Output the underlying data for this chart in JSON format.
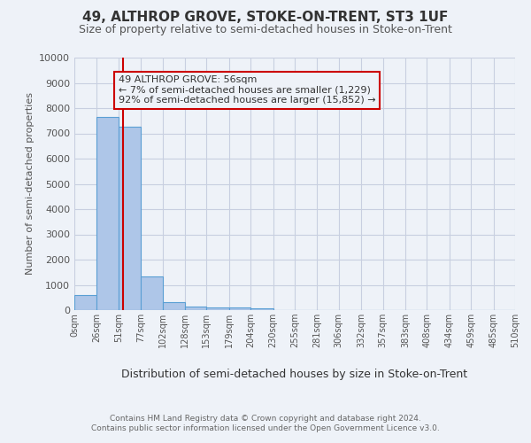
{
  "title": "49, ALTHROP GROVE, STOKE-ON-TRENT, ST3 1UF",
  "subtitle": "Size of property relative to semi-detached houses in Stoke-on-Trent",
  "xlabel": "Distribution of semi-detached houses by size in Stoke-on-Trent",
  "ylabel": "Number of semi-detached properties",
  "footer_line1": "Contains HM Land Registry data © Crown copyright and database right 2024.",
  "footer_line2": "Contains public sector information licensed under the Open Government Licence v3.0.",
  "annotation_title": "49 ALTHROP GROVE: 56sqm",
  "annotation_line1": "← 7% of semi-detached houses are smaller (1,229)",
  "annotation_line2": "92% of semi-detached houses are larger (15,852) →",
  "property_size_sqm": 56,
  "bar_edges": [
    0,
    26,
    51,
    77,
    102,
    128,
    153,
    179,
    204,
    230,
    255,
    281,
    306,
    332,
    357,
    383,
    408,
    434,
    459,
    485,
    510
  ],
  "bar_heights": [
    600,
    7650,
    7250,
    1350,
    330,
    150,
    120,
    100,
    80,
    0,
    0,
    0,
    0,
    0,
    0,
    0,
    0,
    0,
    0,
    0
  ],
  "bar_color": "#aec6e8",
  "bar_edgecolor": "#5a9fd4",
  "bg_color": "#eef2f8",
  "grid_color": "#c8cfe0",
  "redline_color": "#cc0000",
  "annotation_box_edgecolor": "#cc0000",
  "tick_labels": [
    "0sqm",
    "26sqm",
    "51sqm",
    "77sqm",
    "102sqm",
    "128sqm",
    "153sqm",
    "179sqm",
    "204sqm",
    "230sqm",
    "255sqm",
    "281sqm",
    "306sqm",
    "332sqm",
    "357sqm",
    "383sqm",
    "408sqm",
    "434sqm",
    "459sqm",
    "485sqm",
    "510sqm"
  ],
  "ylim": [
    0,
    10000
  ],
  "yticks": [
    0,
    1000,
    2000,
    3000,
    4000,
    5000,
    6000,
    7000,
    8000,
    9000,
    10000
  ],
  "title_fontsize": 11,
  "subtitle_fontsize": 9,
  "ylabel_fontsize": 8,
  "xlabel_fontsize": 9,
  "tick_fontsize": 7,
  "ytick_fontsize": 8,
  "footer_fontsize": 6.5,
  "annotation_fontsize": 8
}
